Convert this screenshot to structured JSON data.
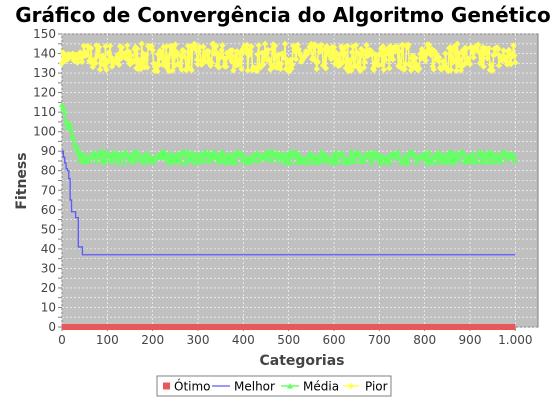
{
  "chart_data": {
    "type": "line",
    "title": "Gráfico de Convergência do Algoritmo Genético",
    "xlabel": "Categorias",
    "ylabel": "Fitness",
    "xlim": [
      0,
      1050
    ],
    "ylim": [
      0,
      150
    ],
    "x_ticks": [
      0,
      100,
      200,
      300,
      400,
      500,
      600,
      700,
      800,
      900,
      1000
    ],
    "x_tick_labels": [
      "0",
      "100",
      "200",
      "300",
      "400",
      "500",
      "600",
      "700",
      "800",
      "900",
      "1.000"
    ],
    "y_ticks": [
      0,
      5,
      10,
      15,
      20,
      25,
      30,
      35,
      40,
      45,
      50,
      55,
      60,
      65,
      70,
      75,
      80,
      85,
      90,
      95,
      100,
      105,
      110,
      115,
      120,
      125,
      130,
      135,
      140,
      145,
      150
    ],
    "grid": true,
    "legend_position": "bottom",
    "background": "#c0c0c0",
    "series": [
      {
        "name": "Ótimo",
        "color": "#e85858",
        "marker": "square",
        "x": [
          0,
          1000
        ],
        "y": [
          0,
          0
        ]
      },
      {
        "name": "Melhor",
        "color": "#5a5aff",
        "marker": "none",
        "x": [
          0,
          3,
          6,
          9,
          12,
          15,
          18,
          21,
          24,
          27,
          30,
          33,
          36,
          39,
          42,
          45,
          60,
          100,
          200,
          300,
          400,
          500,
          600,
          700,
          800,
          900,
          1000
        ],
        "y": [
          90,
          87,
          84,
          81,
          80,
          76,
          65,
          59,
          59,
          59,
          56,
          56,
          41,
          41,
          41,
          37,
          37,
          37,
          37,
          37,
          37,
          37,
          37,
          37,
          37,
          37,
          37
        ]
      },
      {
        "name": "Média",
        "color": "#66ff66",
        "marker": "triangle",
        "x": [
          0,
          5,
          10,
          15,
          20,
          25,
          30,
          35,
          40,
          50,
          100,
          200,
          300,
          400,
          500,
          600,
          700,
          800,
          900,
          1000
        ],
        "y": [
          113,
          110,
          107,
          103,
          100,
          98,
          96,
          91,
          88,
          86,
          86,
          87,
          86,
          87,
          86,
          87,
          86,
          87,
          86,
          86
        ],
        "band": [
          84,
          90
        ]
      },
      {
        "name": "Pior",
        "color": "#ffff55",
        "marker": "diamond",
        "x": [
          0,
          100,
          200,
          300,
          400,
          500,
          600,
          700,
          800,
          900,
          1000
        ],
        "y": [
          138,
          138,
          139,
          138,
          139,
          138,
          139,
          138,
          139,
          138,
          138
        ],
        "band": [
          131,
          145
        ]
      }
    ]
  }
}
